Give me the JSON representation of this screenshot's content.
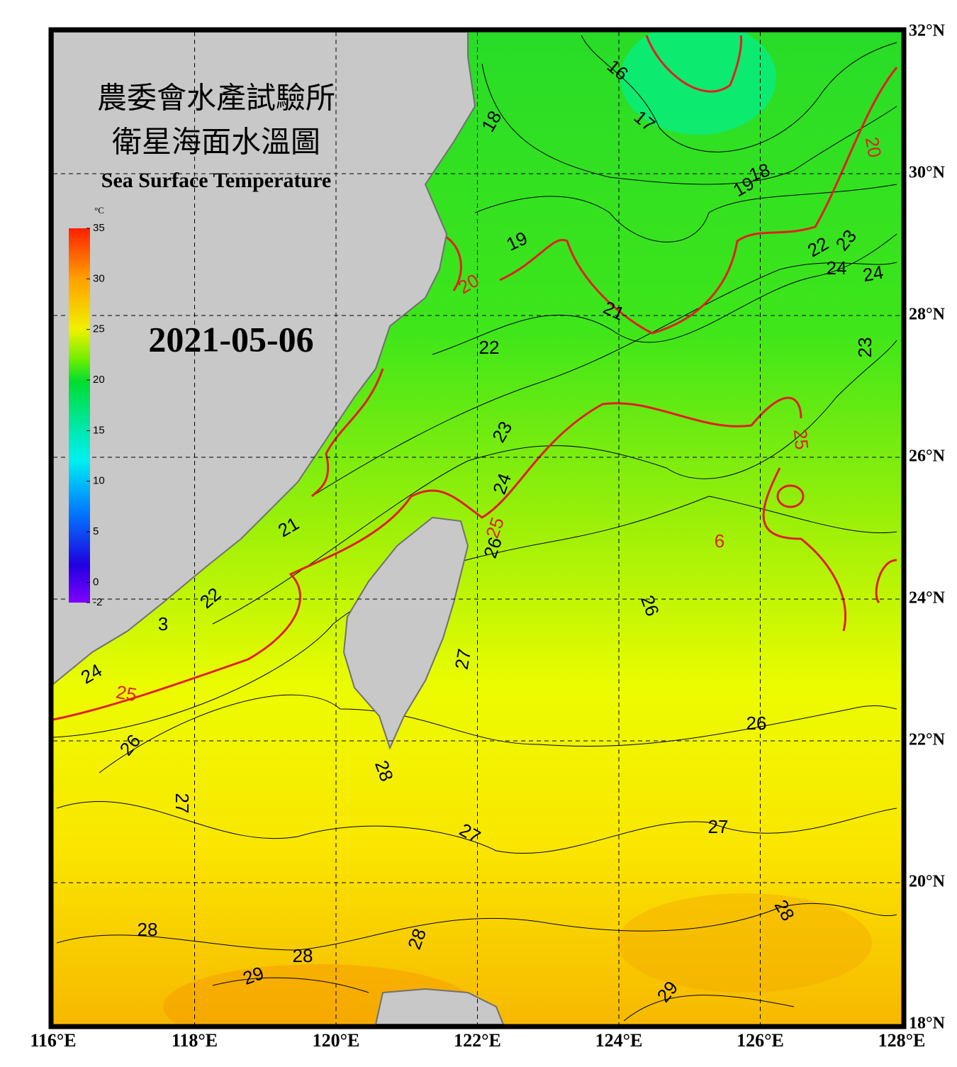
{
  "header": {
    "title_lines": [
      "農委會水產試驗所",
      "衛星海面水溫圖"
    ],
    "subtitle": "Sea Surface Temperature",
    "date": "2021-05-06"
  },
  "colorbar": {
    "unit": "°C",
    "range": [
      -2,
      35
    ],
    "ticks": [
      35,
      30,
      25,
      20,
      15,
      10,
      5,
      0,
      -2
    ]
  },
  "axes": {
    "lon_range": [
      116,
      128
    ],
    "lat_range": [
      18,
      32
    ],
    "lon_ticks": [
      {
        "value": 116,
        "label": "116°E"
      },
      {
        "value": 118,
        "label": "118°E"
      },
      {
        "value": 120,
        "label": "120°E"
      },
      {
        "value": 122,
        "label": "122°E"
      },
      {
        "value": 124,
        "label": "124°E"
      },
      {
        "value": 126,
        "label": "126°E"
      },
      {
        "value": 128,
        "label": "128°E"
      }
    ],
    "lat_ticks": [
      {
        "value": 32,
        "label": "32°N"
      },
      {
        "value": 30,
        "label": "30°N"
      },
      {
        "value": 28,
        "label": "28°N"
      },
      {
        "value": 26,
        "label": "26°N"
      },
      {
        "value": 24,
        "label": "24°N"
      },
      {
        "value": 22,
        "label": "22°N"
      },
      {
        "value": 20,
        "label": "20°N"
      },
      {
        "value": 18,
        "label": "18°N"
      }
    ]
  },
  "contour_labels": [
    "16",
    "17",
    "18",
    "20",
    "19",
    "18",
    "19",
    "20",
    "22",
    "23",
    "24",
    "24",
    "21",
    "22",
    "23",
    "23",
    "25",
    "24",
    "25",
    "26",
    "6",
    "21",
    "22",
    "3",
    "26",
    "24",
    "25",
    "27",
    "26",
    "26",
    "28",
    "27",
    "27",
    "27",
    "28",
    "28",
    "28",
    "28",
    "29",
    "29"
  ]
}
